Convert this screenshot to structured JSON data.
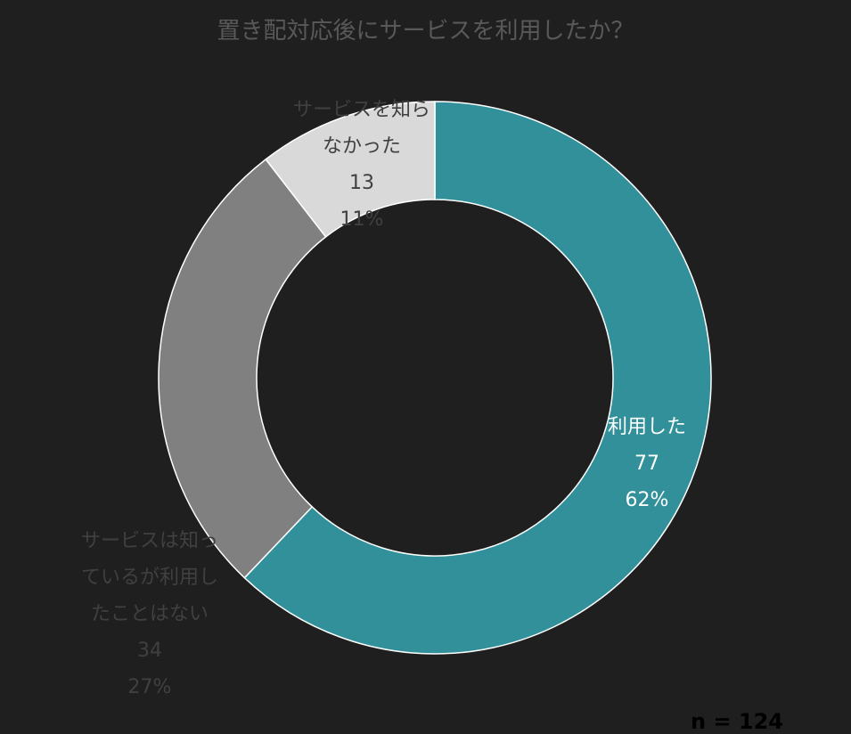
{
  "chart_data": {
    "type": "pie",
    "style": "donut",
    "title": "置き配対応後にサービスを利用したか？",
    "slices": [
      {
        "label_lines": [
          "利用した"
        ],
        "count": "77",
        "percent": "62%",
        "value": 77,
        "color": "#319099",
        "label_color": "#ffffff"
      },
      {
        "label_lines": [
          "サービスは知っ",
          "ているが利用し",
          "たことはない"
        ],
        "count": "34",
        "percent": "27%",
        "value": 34,
        "color": "#808080",
        "label_color": "#404040"
      },
      {
        "label_lines": [
          "サービスを知ら",
          "なかった"
        ],
        "count": "13",
        "percent": "11%",
        "value": 13,
        "color": "#d9d9d9",
        "label_color": "#404040"
      }
    ],
    "legend": "none"
  },
  "footnote": "n = 124"
}
